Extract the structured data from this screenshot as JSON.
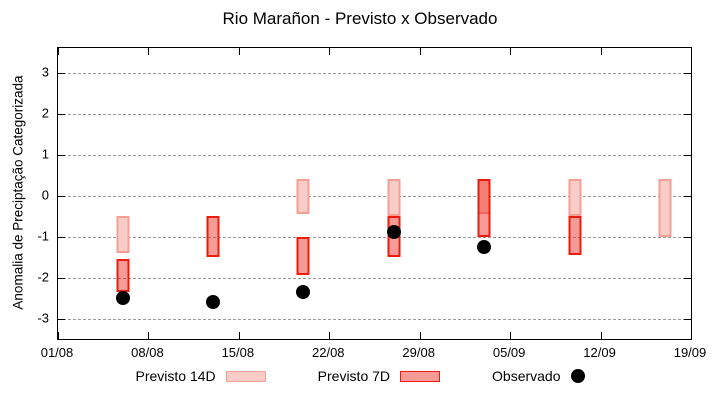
{
  "chart_data": {
    "type": "bar",
    "title": "Rio Marañon - Previsto x Observado",
    "ylabel": "Anomalia de Preciptação Categorizada",
    "xlabel": "",
    "axes": {
      "ylim": [
        -3.5,
        3.6
      ],
      "yticks": [
        3,
        2,
        1,
        0,
        -1,
        -2,
        -3
      ],
      "xlim_days": [
        0,
        49
      ],
      "xticks": [
        {
          "day": 0,
          "label": "01/08"
        },
        {
          "day": 7,
          "label": "08/08"
        },
        {
          "day": 14,
          "label": "15/08"
        },
        {
          "day": 21,
          "label": "22/08"
        },
        {
          "day": 28,
          "label": "29/08"
        },
        {
          "day": 35,
          "label": "05/09"
        },
        {
          "day": 42,
          "label": "12/09"
        },
        {
          "day": 49,
          "label": "19/09"
        }
      ],
      "grid": "horizontal-dashed"
    },
    "groups": [
      {
        "date": "06/08",
        "day": 5,
        "previsto_14d": [
          -0.5,
          -1.4
        ],
        "previsto_7d": [
          -1.55,
          -2.35
        ],
        "observado": -2.5
      },
      {
        "date": "13/08",
        "day": 12,
        "previsto_14d": null,
        "previsto_7d": [
          -0.5,
          -1.5
        ],
        "observado": -2.6
      },
      {
        "date": "20/08",
        "day": 19,
        "previsto_14d": [
          0.4,
          -0.45
        ],
        "previsto_7d": [
          -1.0,
          -1.95
        ],
        "observado": -2.35
      },
      {
        "date": "27/08",
        "day": 26,
        "previsto_14d": [
          0.4,
          -0.5
        ],
        "previsto_7d": [
          -0.5,
          -1.5
        ],
        "observado": -0.9
      },
      {
        "date": "03/09",
        "day": 33,
        "previsto_14d": [
          0.4,
          -0.45
        ],
        "previsto_7d": [
          0.4,
          -1.0
        ],
        "observado": -1.25
      },
      {
        "date": "10/09",
        "day": 40,
        "previsto_14d": [
          0.4,
          -0.5
        ],
        "previsto_7d": [
          -0.5,
          -1.45
        ],
        "observado": null
      },
      {
        "date": "17/09",
        "day": 47,
        "previsto_14d": [
          0.4,
          -1.0
        ],
        "previsto_7d": null,
        "observado": null
      }
    ],
    "legend": [
      {
        "label": "Previsto 14D",
        "marker": "box-light"
      },
      {
        "label": "Previsto 7D",
        "marker": "box-red"
      },
      {
        "label": "Observado",
        "marker": "dot-black"
      }
    ],
    "legend_position": "bottom-center",
    "colors": {
      "previsto_14d_fill": "#f9cdc7",
      "previsto_14d_border": "#f59f94",
      "previsto_7d_fill": "#fb9a93",
      "previsto_7d_border": "#ec1c0f",
      "overlap_fill": "#f4776e",
      "observado": "#000000",
      "grid": "#9a9a9a",
      "axis": "#000000"
    }
  }
}
